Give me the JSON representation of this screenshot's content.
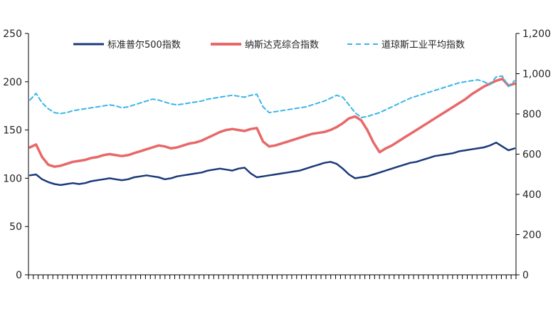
{
  "chart_data": {
    "type": "line",
    "title": "",
    "xlabel": "",
    "ylabel_left": "",
    "ylabel_right": "",
    "ylim_left": [
      0,
      250
    ],
    "ylim_right": [
      0,
      1200
    ],
    "yticks_left": [
      "0",
      "50",
      "100",
      "150",
      "200",
      "250"
    ],
    "yticks_right": [
      "0",
      "200",
      "400",
      "600",
      "800",
      "1,000",
      "1,200"
    ],
    "legend_position": "top",
    "grid": false,
    "n_points": 80,
    "series": [
      {
        "name": "标准普尔500指数",
        "axis": "left",
        "style": "solid",
        "color": "#1a3a7a",
        "values": [
          103,
          104,
          99,
          96,
          94,
          93,
          94,
          95,
          94,
          95,
          97,
          98,
          99,
          100,
          99,
          98,
          99,
          101,
          102,
          103,
          102,
          101,
          99,
          100,
          102,
          103,
          104,
          105,
          106,
          108,
          109,
          110,
          109,
          108,
          110,
          111,
          105,
          101,
          102,
          103,
          104,
          105,
          106,
          107,
          108,
          110,
          112,
          114,
          116,
          117,
          115,
          110,
          104,
          100,
          101,
          102,
          104,
          106,
          108,
          110,
          112,
          114,
          116,
          117,
          119,
          121,
          123,
          124,
          125,
          126,
          128,
          129,
          130,
          131,
          132,
          134,
          137,
          133,
          129,
          131
        ]
      },
      {
        "name": "纳斯达克综合指数",
        "axis": "left",
        "style": "solid",
        "color": "#e86868",
        "values": [
          132,
          135,
          122,
          114,
          112,
          113,
          115,
          117,
          118,
          119,
          121,
          122,
          124,
          125,
          124,
          123,
          124,
          126,
          128,
          130,
          132,
          134,
          133,
          131,
          132,
          134,
          136,
          137,
          139,
          142,
          145,
          148,
          150,
          151,
          150,
          149,
          151,
          152,
          138,
          133,
          134,
          136,
          138,
          140,
          142,
          144,
          146,
          147,
          148,
          150,
          153,
          157,
          162,
          164,
          160,
          150,
          137,
          127,
          131,
          134,
          138,
          142,
          146,
          150,
          154,
          158,
          162,
          166,
          170,
          174,
          178,
          182,
          187,
          191,
          195,
          198,
          201,
          203,
          196,
          198
        ]
      },
      {
        "name": "道琼斯工业平均指数",
        "axis": "left",
        "style": "dashed",
        "color": "#3ab6e8",
        "values": [
          181,
          188,
          178,
          172,
          168,
          167,
          168,
          170,
          171,
          172,
          173,
          174,
          175,
          176,
          175,
          173,
          174,
          176,
          178,
          180,
          182,
          181,
          179,
          177,
          176,
          177,
          178,
          179,
          180,
          182,
          183,
          184,
          185,
          186,
          185,
          184,
          186,
          187,
          174,
          168,
          169,
          170,
          171,
          172,
          173,
          174,
          176,
          178,
          180,
          183,
          186,
          184,
          176,
          168,
          163,
          164,
          166,
          168,
          171,
          174,
          177,
          180,
          183,
          185,
          187,
          189,
          191,
          193,
          195,
          197,
          199,
          200,
          201,
          202,
          200,
          197,
          205,
          206,
          195,
          201
        ]
      }
    ]
  }
}
